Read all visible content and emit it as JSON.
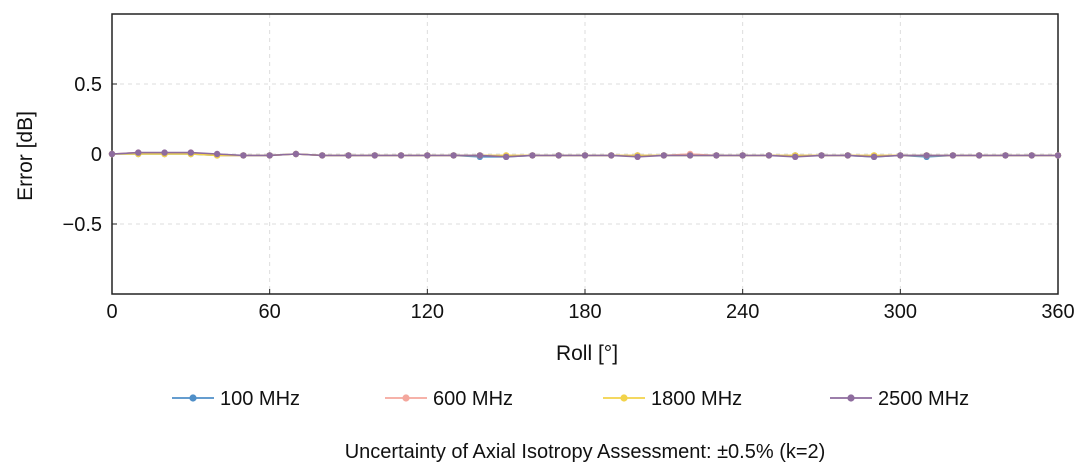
{
  "chart_data": {
    "type": "line",
    "title": "",
    "xlabel": "Roll [°]",
    "ylabel": "Error [dB]",
    "xlim": [
      0,
      360
    ],
    "ylim": [
      -1,
      1
    ],
    "xticks": [
      0,
      60,
      120,
      180,
      240,
      300,
      360
    ],
    "yticks": [
      0.5,
      0,
      -0.5
    ],
    "ytick_labels": [
      "0.5",
      "0",
      "−0.5"
    ],
    "grid": true,
    "legend_position": "bottom",
    "x": [
      0,
      10,
      20,
      30,
      40,
      50,
      60,
      70,
      80,
      90,
      100,
      110,
      120,
      130,
      140,
      150,
      160,
      170,
      180,
      190,
      200,
      210,
      220,
      230,
      240,
      250,
      260,
      270,
      280,
      290,
      300,
      310,
      320,
      330,
      340,
      350,
      360
    ],
    "series": [
      {
        "name": "100 MHz",
        "color": "#4f8fc8",
        "values": [
          0,
          0,
          0,
          0,
          -0.01,
          -0.01,
          -0.01,
          0,
          -0.01,
          -0.01,
          -0.01,
          -0.01,
          -0.01,
          -0.01,
          -0.02,
          -0.02,
          -0.01,
          -0.01,
          -0.01,
          -0.01,
          -0.01,
          -0.01,
          -0.01,
          -0.01,
          -0.01,
          -0.01,
          -0.01,
          -0.01,
          -0.01,
          -0.02,
          -0.01,
          -0.02,
          -0.01,
          -0.01,
          -0.01,
          -0.01,
          -0.01
        ]
      },
      {
        "name": "600 MHz",
        "color": "#f4a79d",
        "values": [
          0,
          0.01,
          0,
          0.01,
          -0.01,
          -0.01,
          -0.01,
          0,
          -0.01,
          -0.01,
          -0.01,
          -0.01,
          -0.01,
          -0.01,
          -0.01,
          -0.01,
          -0.01,
          -0.01,
          -0.01,
          -0.01,
          -0.01,
          -0.01,
          0,
          -0.01,
          -0.01,
          -0.01,
          -0.01,
          -0.01,
          -0.01,
          -0.01,
          -0.01,
          -0.01,
          -0.01,
          -0.01,
          -0.01,
          -0.01,
          -0.01
        ]
      },
      {
        "name": "1800 MHz",
        "color": "#f2d34a",
        "values": [
          0,
          0,
          0,
          0,
          -0.01,
          -0.01,
          -0.01,
          0,
          -0.01,
          -0.01,
          -0.01,
          -0.01,
          -0.01,
          -0.01,
          -0.01,
          -0.01,
          -0.01,
          -0.01,
          -0.01,
          -0.01,
          -0.01,
          -0.01,
          -0.01,
          -0.01,
          -0.01,
          -0.01,
          -0.01,
          -0.01,
          -0.01,
          -0.01,
          -0.01,
          -0.01,
          -0.01,
          -0.01,
          -0.01,
          -0.01,
          -0.01
        ]
      },
      {
        "name": "2500 MHz",
        "color": "#8e6c9e",
        "values": [
          0,
          0.01,
          0.01,
          0.01,
          0,
          -0.01,
          -0.01,
          0,
          -0.01,
          -0.01,
          -0.01,
          -0.01,
          -0.01,
          -0.01,
          -0.01,
          -0.02,
          -0.01,
          -0.01,
          -0.01,
          -0.01,
          -0.02,
          -0.01,
          -0.01,
          -0.01,
          -0.01,
          -0.01,
          -0.02,
          -0.01,
          -0.01,
          -0.02,
          -0.01,
          -0.01,
          -0.01,
          -0.01,
          -0.01,
          -0.01,
          -0.01
        ]
      }
    ],
    "annotation": "Uncertainty of Axial Isotropy Assessment: ±0.5% (k=2)"
  }
}
